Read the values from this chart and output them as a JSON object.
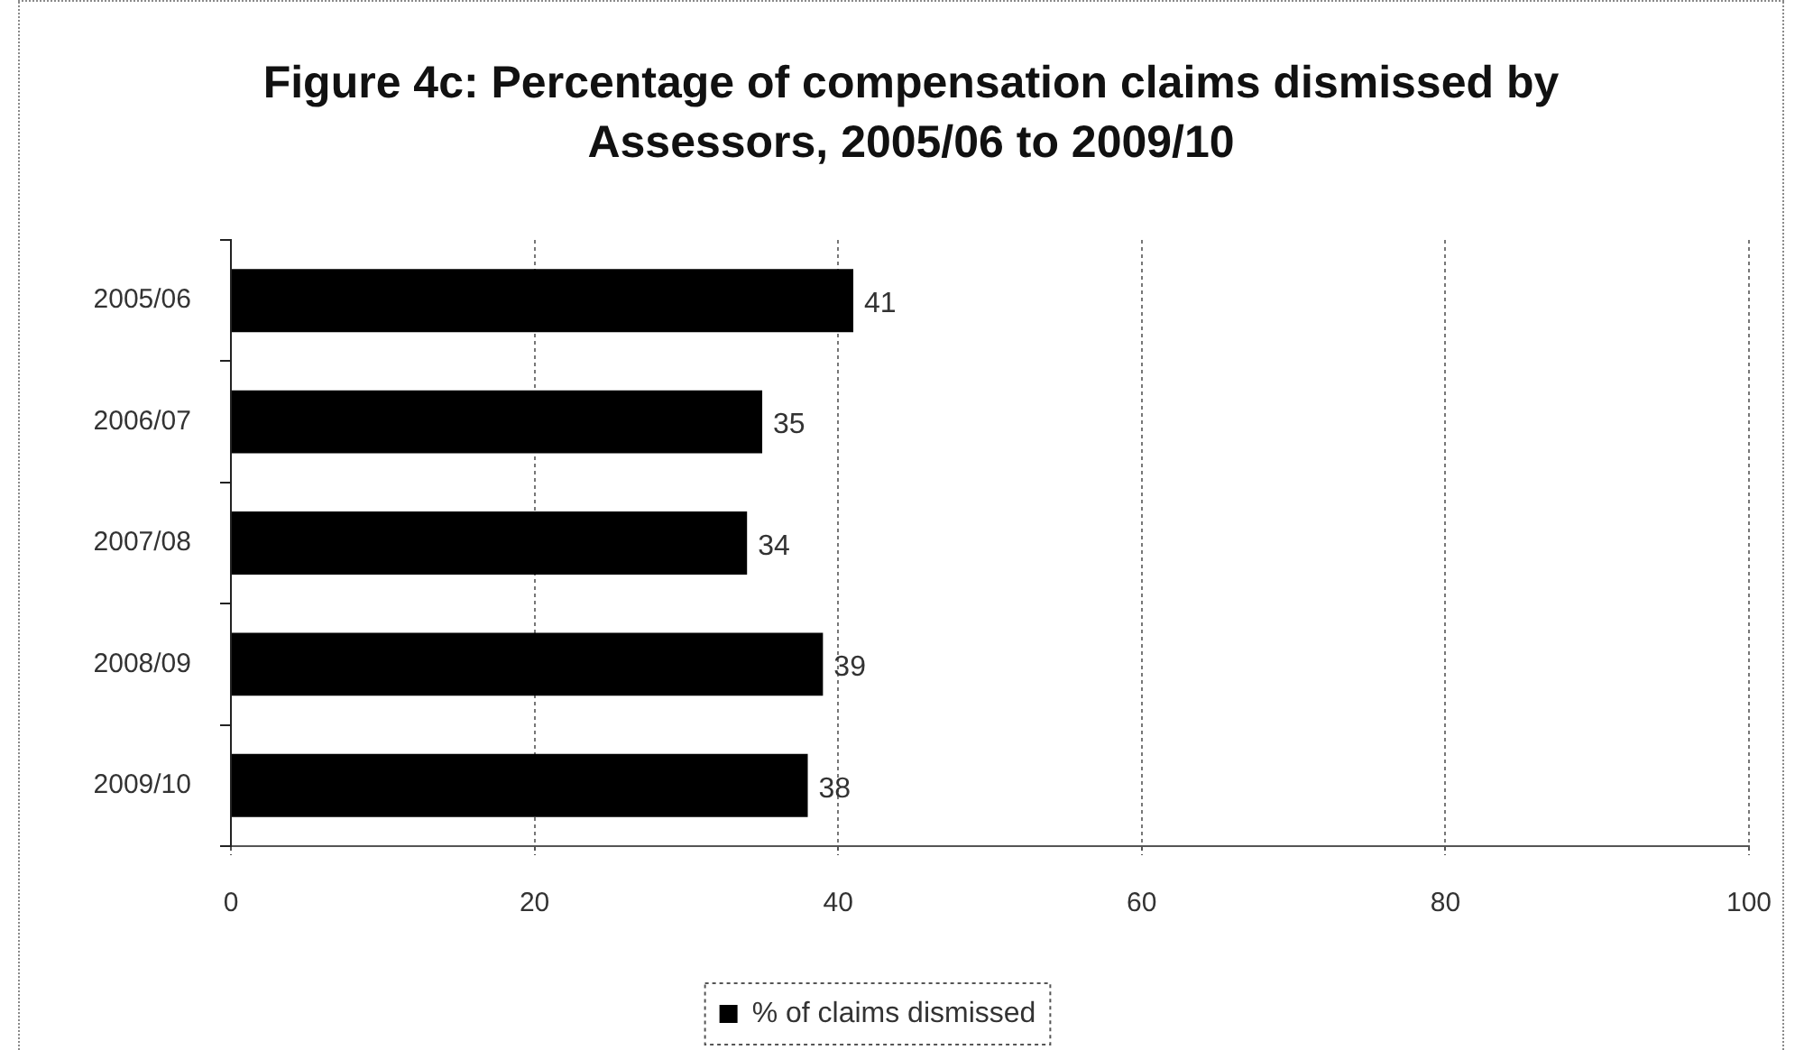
{
  "chart_data": {
    "type": "bar",
    "orientation": "horizontal",
    "title": "Figure 4c: Percentage of compensation claims dismissed by Assessors, 2005/06 to 2009/10",
    "categories": [
      "2005/06",
      "2006/07",
      "2007/08",
      "2008/09",
      "2009/10"
    ],
    "series": [
      {
        "name": "% of claims dismissed",
        "color": "#000000",
        "values": [
          41,
          35,
          34,
          39,
          38
        ]
      }
    ],
    "xlim": [
      0,
      100
    ],
    "xticks": [
      0,
      20,
      40,
      60,
      80,
      100
    ],
    "grid": "x",
    "legend": "bottom",
    "data_labels": true
  }
}
